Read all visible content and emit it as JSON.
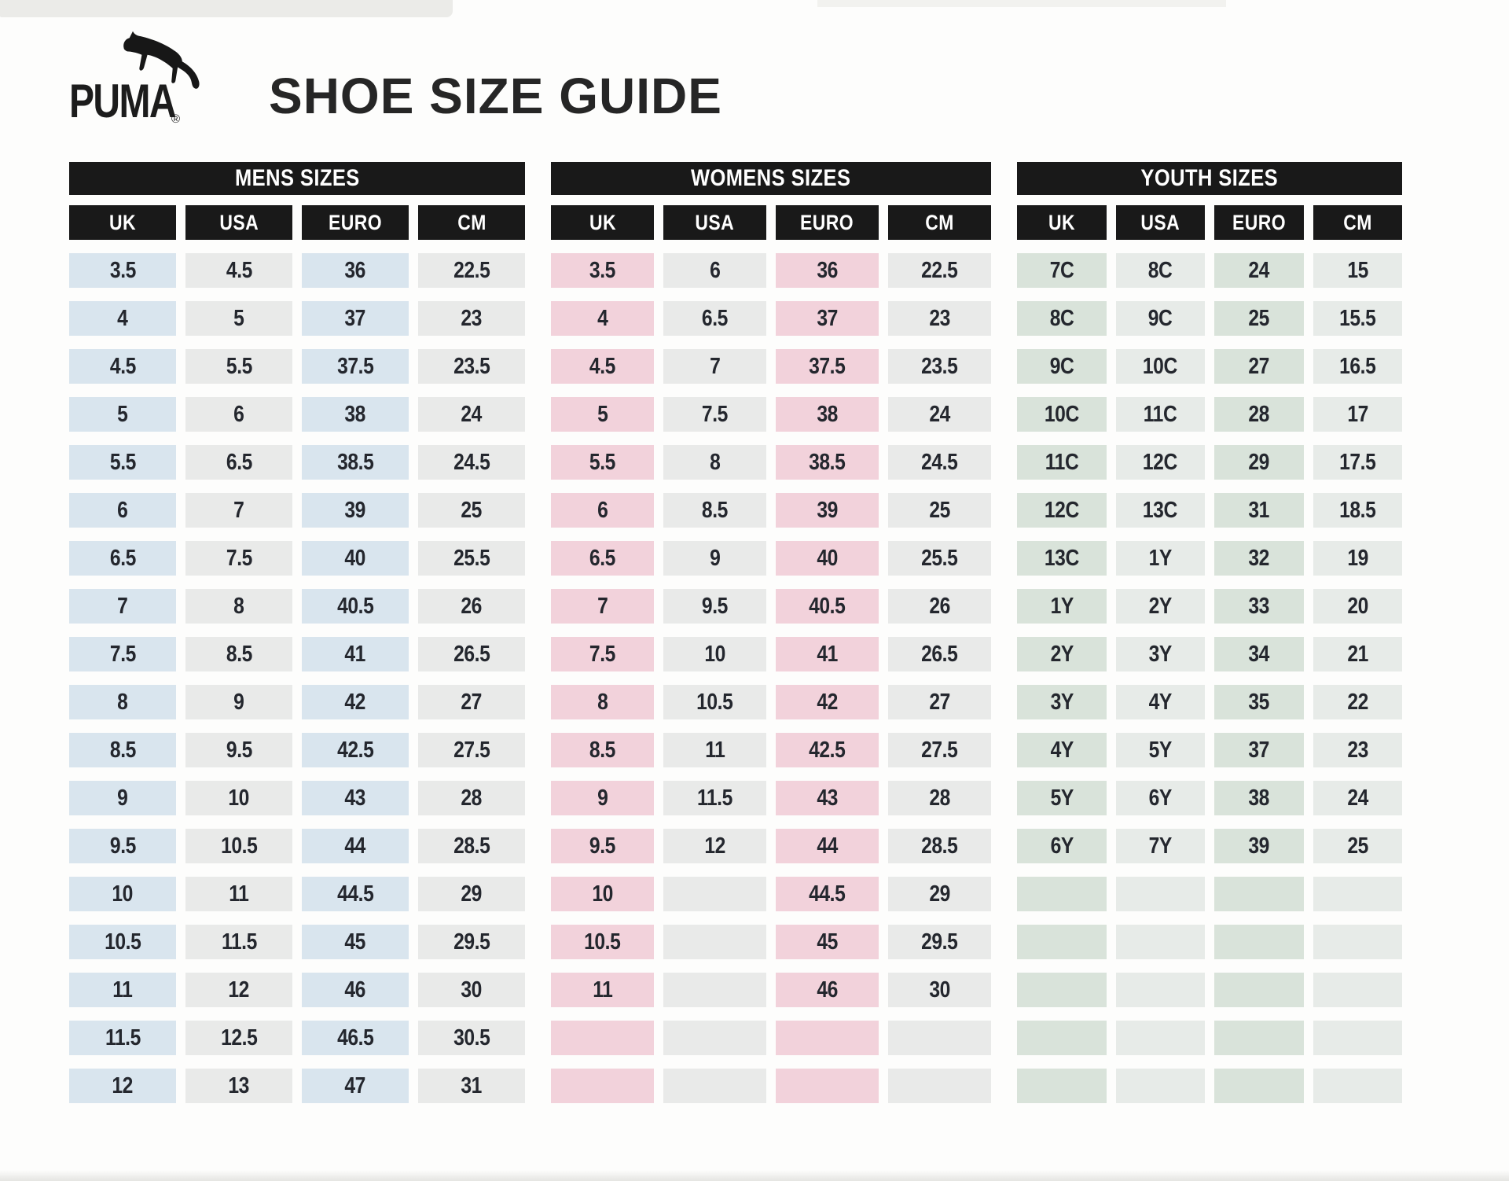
{
  "header": {
    "brand": "PUMA",
    "registered_mark": "®",
    "title": "SHOE SIZE GUIDE",
    "logo_icon": "puma-leaping-cat"
  },
  "colors": {
    "bar_background": "#191919",
    "bar_text": "#ffffff",
    "cell_text": "#24272e",
    "page_background": "#fdfdfc",
    "mens_accent": "#d9e5ee",
    "womens_accent": "#f2d2db",
    "youth_accent": "#d9e3da",
    "neutral_cell": "#e9eae9"
  },
  "tables": [
    {
      "id": "mens",
      "title": "MENS SIZES",
      "accent": "#d9e5ee",
      "neutral": "#e9eae9",
      "columns": [
        "UK",
        "USA",
        "EURO",
        "CM"
      ],
      "rows": [
        [
          "3.5",
          "4.5",
          "36",
          "22.5"
        ],
        [
          "4",
          "5",
          "37",
          "23"
        ],
        [
          "4.5",
          "5.5",
          "37.5",
          "23.5"
        ],
        [
          "5",
          "6",
          "38",
          "24"
        ],
        [
          "5.5",
          "6.5",
          "38.5",
          "24.5"
        ],
        [
          "6",
          "7",
          "39",
          "25"
        ],
        [
          "6.5",
          "7.5",
          "40",
          "25.5"
        ],
        [
          "7",
          "8",
          "40.5",
          "26"
        ],
        [
          "7.5",
          "8.5",
          "41",
          "26.5"
        ],
        [
          "8",
          "9",
          "42",
          "27"
        ],
        [
          "8.5",
          "9.5",
          "42.5",
          "27.5"
        ],
        [
          "9",
          "10",
          "43",
          "28"
        ],
        [
          "9.5",
          "10.5",
          "44",
          "28.5"
        ],
        [
          "10",
          "11",
          "44.5",
          "29"
        ],
        [
          "10.5",
          "11.5",
          "45",
          "29.5"
        ],
        [
          "11",
          "12",
          "46",
          "30"
        ],
        [
          "11.5",
          "12.5",
          "46.5",
          "30.5"
        ],
        [
          "12",
          "13",
          "47",
          "31"
        ]
      ]
    },
    {
      "id": "womens",
      "title": "WOMENS SIZES",
      "accent": "#f2d2db",
      "neutral": "#e9eae9",
      "columns": [
        "UK",
        "USA",
        "EURO",
        "CM"
      ],
      "rows": [
        [
          "3.5",
          "6",
          "36",
          "22.5"
        ],
        [
          "4",
          "6.5",
          "37",
          "23"
        ],
        [
          "4.5",
          "7",
          "37.5",
          "23.5"
        ],
        [
          "5",
          "7.5",
          "38",
          "24"
        ],
        [
          "5.5",
          "8",
          "38.5",
          "24.5"
        ],
        [
          "6",
          "8.5",
          "39",
          "25"
        ],
        [
          "6.5",
          "9",
          "40",
          "25.5"
        ],
        [
          "7",
          "9.5",
          "40.5",
          "26"
        ],
        [
          "7.5",
          "10",
          "41",
          "26.5"
        ],
        [
          "8",
          "10.5",
          "42",
          "27"
        ],
        [
          "8.5",
          "11",
          "42.5",
          "27.5"
        ],
        [
          "9",
          "11.5",
          "43",
          "28"
        ],
        [
          "9.5",
          "12",
          "44",
          "28.5"
        ],
        [
          "10",
          "",
          "44.5",
          "29"
        ],
        [
          "10.5",
          "",
          "45",
          "29.5"
        ],
        [
          "11",
          "",
          "46",
          "30"
        ],
        [
          "",
          "",
          "",
          ""
        ],
        [
          "",
          "",
          "",
          ""
        ]
      ]
    },
    {
      "id": "youth",
      "title": "YOUTH SIZES",
      "accent": "#d9e3da",
      "neutral": "#e7ebe8",
      "columns": [
        "UK",
        "USA",
        "EURO",
        "CM"
      ],
      "rows": [
        [
          "7C",
          "8C",
          "24",
          "15"
        ],
        [
          "8C",
          "9C",
          "25",
          "15.5"
        ],
        [
          "9C",
          "10C",
          "27",
          "16.5"
        ],
        [
          "10C",
          "11C",
          "28",
          "17"
        ],
        [
          "11C",
          "12C",
          "29",
          "17.5"
        ],
        [
          "12C",
          "13C",
          "31",
          "18.5"
        ],
        [
          "13C",
          "1Y",
          "32",
          "19"
        ],
        [
          "1Y",
          "2Y",
          "33",
          "20"
        ],
        [
          "2Y",
          "3Y",
          "34",
          "21"
        ],
        [
          "3Y",
          "4Y",
          "35",
          "22"
        ],
        [
          "4Y",
          "5Y",
          "37",
          "23"
        ],
        [
          "5Y",
          "6Y",
          "38",
          "24"
        ],
        [
          "6Y",
          "7Y",
          "39",
          "25"
        ],
        [
          "",
          "",
          "",
          ""
        ],
        [
          "",
          "",
          "",
          ""
        ],
        [
          "",
          "",
          "",
          ""
        ],
        [
          "",
          "",
          "",
          ""
        ],
        [
          "",
          "",
          "",
          ""
        ]
      ]
    }
  ]
}
